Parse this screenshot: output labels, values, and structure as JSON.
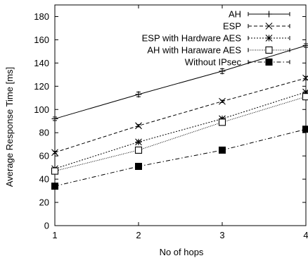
{
  "chart_data": {
    "type": "line",
    "xlabel": "No of hops",
    "ylabel": "Average Response Time [ms]",
    "x": [
      1,
      2,
      3,
      4
    ],
    "xlim": [
      1,
      4
    ],
    "ylim": [
      0,
      190
    ],
    "xticks": [
      "1",
      "2",
      "3",
      "4"
    ],
    "yticks": [
      "0",
      "20",
      "40",
      "60",
      "80",
      "100",
      "120",
      "140",
      "160",
      "180"
    ],
    "grid": false,
    "legend_position": "top-right",
    "series": [
      {
        "name": "AH",
        "values": [
          92,
          113,
          133,
          155
        ],
        "marker": "plus",
        "dash": "solid",
        "errors": [
          1.5,
          2,
          2,
          1.5
        ]
      },
      {
        "name": "ESP",
        "values": [
          63,
          86,
          107,
          127
        ],
        "marker": "x",
        "dash": "dashed",
        "errors": [
          1,
          1,
          1,
          1.5
        ]
      },
      {
        "name": "ESP with Hardware AES",
        "values": [
          49,
          72,
          92,
          115
        ],
        "marker": "asterisk",
        "dash": "dotted",
        "errors": [
          1,
          1,
          1,
          1
        ]
      },
      {
        "name": "AH with Haraware AES",
        "values": [
          47,
          65,
          89,
          111
        ],
        "marker": "square-open",
        "dash": "fine-dotted",
        "errors": [
          1,
          1,
          1,
          1
        ]
      },
      {
        "name": "Without IPsec",
        "values": [
          34,
          51,
          65,
          83
        ],
        "marker": "square-filled",
        "dash": "dash-dot",
        "errors": [
          1,
          1,
          1,
          1
        ]
      }
    ]
  }
}
